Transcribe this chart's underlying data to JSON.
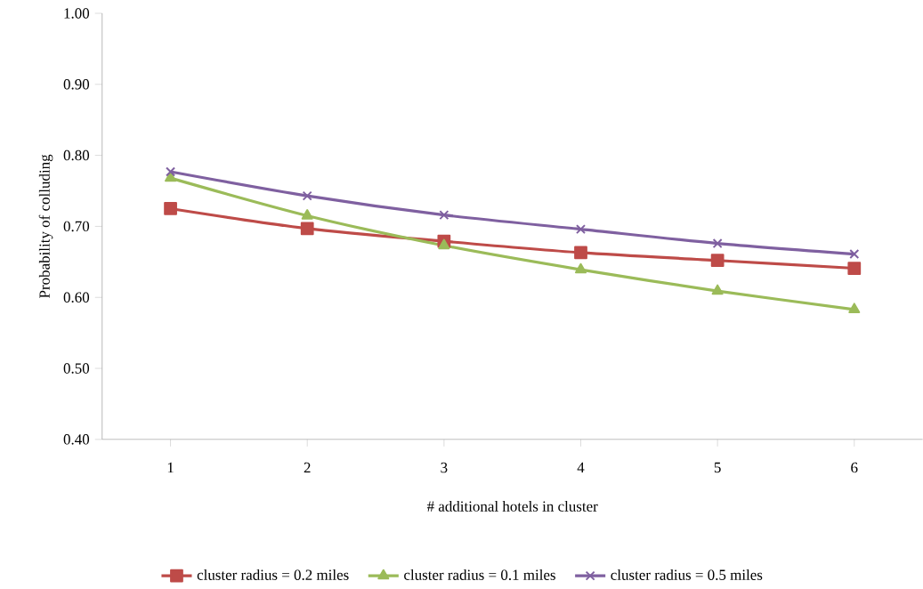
{
  "chart_data": {
    "type": "line",
    "xlabel": "# additional hotels in cluster",
    "ylabel": "Probability of colluding",
    "categories": [
      "1",
      "2",
      "3",
      "4",
      "5",
      "6"
    ],
    "series": [
      {
        "name": "cluster radius = 0.2 miles",
        "color": "#be4b48",
        "marker": "square",
        "values": [
          0.725,
          0.697,
          0.679,
          0.663,
          0.652,
          0.641
        ]
      },
      {
        "name": "cluster radius = 0.1 miles",
        "color": "#9bbb59",
        "marker": "triangle",
        "values": [
          0.768,
          0.715,
          0.673,
          0.639,
          0.609,
          0.583
        ]
      },
      {
        "name": "cluster radius = 0.5 miles",
        "color": "#7f60a0",
        "marker": "cross",
        "values": [
          0.777,
          0.743,
          0.716,
          0.696,
          0.676,
          0.661
        ]
      }
    ],
    "ylim": [
      0.4,
      1.0
    ],
    "yticks": [
      {
        "value": 0.4,
        "label": "0.40"
      },
      {
        "value": 0.5,
        "label": "0.50"
      },
      {
        "value": 0.6,
        "label": "0.60"
      },
      {
        "value": 0.7,
        "label": "0.70"
      },
      {
        "value": 0.8,
        "label": "0.80"
      },
      {
        "value": 0.9,
        "label": "0.90"
      },
      {
        "value": 1.0,
        "label": "1.00"
      }
    ],
    "legend": "bottom",
    "line_style": "solid"
  }
}
